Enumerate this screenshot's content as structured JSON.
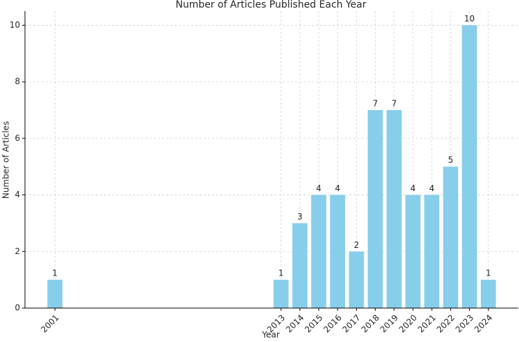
{
  "chart_data": {
    "type": "bar",
    "title": "Number of Articles Published Each Year",
    "xlabel": "Year",
    "ylabel": "Number of Articles",
    "x": [
      2001,
      2013,
      2014,
      2015,
      2016,
      2017,
      2018,
      2019,
      2020,
      2021,
      2022,
      2023,
      2024
    ],
    "values": [
      1,
      1,
      3,
      4,
      4,
      2,
      7,
      7,
      4,
      4,
      5,
      10,
      1
    ],
    "color": "#87ceeb",
    "xlim": [
      1999.41,
      2025.59
    ],
    "xticks": [
      2001,
      2013,
      2014,
      2015,
      2016,
      2017,
      2018,
      2019,
      2020,
      2021,
      2022,
      2023,
      2024
    ],
    "ylim": [
      0,
      10.5
    ],
    "yticks": [
      0,
      2,
      4,
      6,
      8,
      10
    ],
    "grid": true
  }
}
